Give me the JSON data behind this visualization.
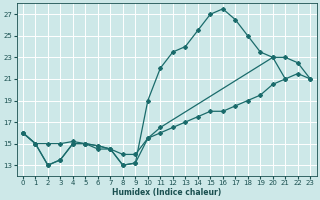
{
  "xlabel": "Humidex (Indice chaleur)",
  "bg_color": "#cde8e8",
  "grid_color": "#b8d8d8",
  "line_color": "#1a6b6b",
  "xlim": [
    -0.5,
    23.5
  ],
  "ylim": [
    12,
    28
  ],
  "yticks": [
    13,
    15,
    17,
    19,
    21,
    23,
    25,
    27
  ],
  "xticks": [
    0,
    1,
    2,
    3,
    4,
    5,
    6,
    7,
    8,
    9,
    10,
    11,
    12,
    13,
    14,
    15,
    16,
    17,
    18,
    19,
    20,
    21,
    22,
    23
  ],
  "line1_x": [
    0,
    1,
    2,
    3,
    4,
    5,
    6,
    7,
    8,
    9,
    10,
    11,
    12,
    13,
    14,
    15,
    16,
    17,
    18,
    19,
    20,
    21
  ],
  "line1_y": [
    16.0,
    15.0,
    13.0,
    13.5,
    15.0,
    15.0,
    14.8,
    14.5,
    13.0,
    13.2,
    19.0,
    22.0,
    23.5,
    24.0,
    25.5,
    27.0,
    27.5,
    26.5,
    25.0,
    23.5,
    23.0,
    21.0
  ],
  "line2_x": [
    0,
    1,
    2,
    3,
    4,
    5,
    6,
    7,
    8,
    9,
    10,
    11,
    12,
    13,
    14,
    15,
    16,
    17,
    18,
    19,
    20,
    21,
    22,
    23
  ],
  "line2_y": [
    16.0,
    15.0,
    15.0,
    15.0,
    15.2,
    15.0,
    14.8,
    14.5,
    14.0,
    14.0,
    15.5,
    16.0,
    16.5,
    17.0,
    17.5,
    18.0,
    18.0,
    18.5,
    19.0,
    19.5,
    20.5,
    21.0,
    21.5,
    21.0
  ],
  "line3_x": [
    0,
    1,
    2,
    3,
    4,
    5,
    6,
    7,
    8,
    9,
    10,
    11,
    20,
    21,
    22,
    23
  ],
  "line3_y": [
    16.0,
    15.0,
    13.0,
    13.5,
    15.0,
    15.0,
    14.5,
    14.5,
    13.0,
    13.2,
    15.5,
    16.5,
    23.0,
    23.0,
    22.5,
    21.0
  ]
}
